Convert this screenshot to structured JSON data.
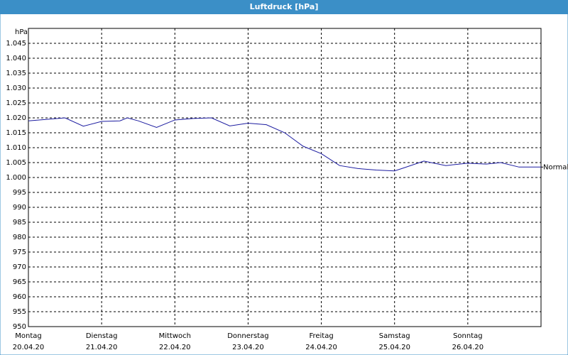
{
  "chart_data": {
    "type": "line",
    "title": "Luftdruck [hPa]",
    "y_unit": "hPa",
    "xlim": [
      0,
      7
    ],
    "xticks": [
      {
        "value": 0,
        "label": "Montag"
      },
      {
        "value": 1,
        "label": "Dienstag"
      },
      {
        "value": 2,
        "label": "Mittwoch"
      },
      {
        "value": 3,
        "label": "Donnerstag"
      },
      {
        "value": 4,
        "label": "Freitag"
      },
      {
        "value": 5,
        "label": "Samstag"
      },
      {
        "value": 6,
        "label": "Sonntag"
      }
    ],
    "xtick_dates": [
      "20.04.20",
      "21.04.20",
      "22.04.20",
      "23.04.20",
      "24.04.20",
      "25.04.20",
      "26.04.20"
    ],
    "ylim": [
      950,
      1050
    ],
    "yticks": [
      950,
      955,
      960,
      965,
      970,
      975,
      980,
      985,
      990,
      995,
      {
        "value": 1000,
        "label": "1.000"
      },
      {
        "value": 1005,
        "label": "1.005"
      },
      {
        "value": 1010,
        "label": "1.010"
      },
      {
        "value": 1015,
        "label": "1.015"
      },
      {
        "value": 1020,
        "label": "1.020"
      },
      {
        "value": 1025,
        "label": "1.025"
      },
      {
        "value": 1030,
        "label": "1.030"
      },
      {
        "value": 1035,
        "label": "1.035"
      },
      {
        "value": 1040,
        "label": "1.040"
      },
      {
        "value": 1045,
        "label": "1.045"
      }
    ],
    "grid": true,
    "series": [
      {
        "name": "Normal",
        "color": "#1c1ca0",
        "x": [
          0,
          0.25,
          0.5,
          0.75,
          1,
          1.25,
          1.35,
          1.5,
          1.75,
          2,
          2.25,
          2.5,
          2.75,
          3,
          3.25,
          3.5,
          3.75,
          4,
          4.25,
          4.5,
          4.75,
          5,
          5.1,
          5.4,
          5.7,
          6,
          6.25,
          6.45,
          6.7,
          7
        ],
        "values": [
          1019,
          1019.5,
          1020,
          1017.2,
          1018.8,
          1019,
          1020,
          1019,
          1016.8,
          1019.3,
          1019.8,
          1020,
          1017.3,
          1018.2,
          1017.7,
          1015,
          1010.5,
          1008,
          1004,
          1003,
          1002.5,
          1002.2,
          1003,
          1005.5,
          1004,
          1004.8,
          1004.5,
          1005,
          1003.5,
          1003.5
        ]
      }
    ]
  }
}
